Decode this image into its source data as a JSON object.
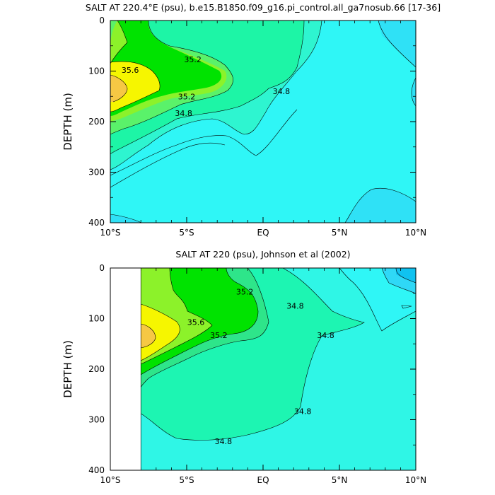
{
  "chart_data": [
    {
      "type": "filled-contour",
      "title": "SALT AT 220.4°E (psu), b.e15.B1850.f09_g16.pi_control.all_ga7nosub.66 [17-36]",
      "ylabel": "DEPTH (m)",
      "x_ticks": [
        "10°S",
        "5°S",
        "EQ",
        "5°N",
        "10°N"
      ],
      "y_ticks": [
        "0",
        "100",
        "200",
        "300",
        "400"
      ],
      "xlim": [
        -10,
        10
      ],
      "ylim": [
        400,
        0
      ],
      "contour_levels": [
        34.6,
        34.8,
        35.0,
        35.2,
        35.4,
        35.6,
        35.8
      ],
      "contour_labels": [
        {
          "text": "35.6",
          "x": -8.7,
          "y": 98
        },
        {
          "text": "35.2",
          "x": -4.6,
          "y": 77
        },
        {
          "text": "35.2",
          "x": -5.0,
          "y": 150
        },
        {
          "text": "34.8",
          "x": -5.2,
          "y": 183
        },
        {
          "text": "34.8",
          "x": 1.2,
          "y": 140
        }
      ]
    },
    {
      "type": "filled-contour",
      "title": "SALT AT 220 (psu), Johnson et al (2002)",
      "ylabel": "DEPTH (m)",
      "x_ticks": [
        "10°S",
        "5°S",
        "EQ",
        "5°N",
        "10°N"
      ],
      "y_ticks": [
        "0",
        "100",
        "200",
        "300",
        "400"
      ],
      "xlim": [
        -10,
        10
      ],
      "ylim": [
        400,
        0
      ],
      "data_start_x": -8,
      "contour_levels": [
        34.6,
        34.8,
        35.0,
        35.2,
        35.4,
        35.6,
        35.8
      ],
      "contour_labels": [
        {
          "text": "35.2",
          "x": -1.2,
          "y": 47
        },
        {
          "text": "35.6",
          "x": -4.4,
          "y": 107
        },
        {
          "text": "35.2",
          "x": -2.9,
          "y": 133
        },
        {
          "text": "34.8",
          "x": 2.1,
          "y": 75
        },
        {
          "text": "34.8",
          "x": 4.1,
          "y": 133
        },
        {
          "text": "34.8",
          "x": 2.6,
          "y": 283
        },
        {
          "text": "34.8",
          "x": -2.6,
          "y": 343
        }
      ]
    }
  ]
}
